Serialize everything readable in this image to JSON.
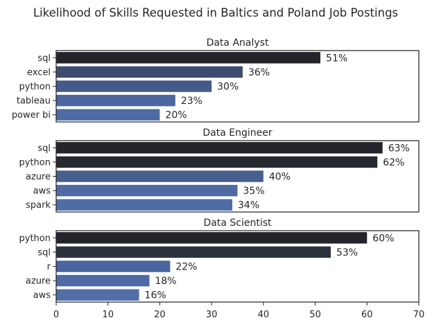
{
  "chart_data": {
    "type": "bar",
    "orientation": "horizontal",
    "title": "Likelihood of Skills Requested in Baltics and Poland Job Postings",
    "xlim": [
      0,
      70
    ],
    "xticks": [
      0,
      10,
      20,
      30,
      40,
      50,
      60,
      70
    ],
    "grid": false,
    "value_suffix": "%",
    "panels": [
      {
        "title": "Data Analyst",
        "categories": [
          "sql",
          "excel",
          "python",
          "tableau",
          "power bi"
        ],
        "values": [
          51,
          36,
          30,
          23,
          20
        ],
        "colors": [
          "#24252a",
          "#3e4c72",
          "#445a8a",
          "#4c67a0",
          "#4f6ba5"
        ]
      },
      {
        "title": "Data Engineer",
        "categories": [
          "sql",
          "python",
          "azure",
          "aws",
          "spark"
        ],
        "values": [
          63,
          62,
          40,
          35,
          34
        ],
        "colors": [
          "#24252a",
          "#262830",
          "#475f8d",
          "#4f6aa3",
          "#506ca6"
        ]
      },
      {
        "title": "Data Scientist",
        "categories": [
          "python",
          "sql",
          "r",
          "azure",
          "aws"
        ],
        "values": [
          60,
          53,
          22,
          18,
          16
        ],
        "colors": [
          "#24252a",
          "#2d323f",
          "#4a64a0",
          "#4e6aa6",
          "#516ea9"
        ]
      }
    ]
  }
}
